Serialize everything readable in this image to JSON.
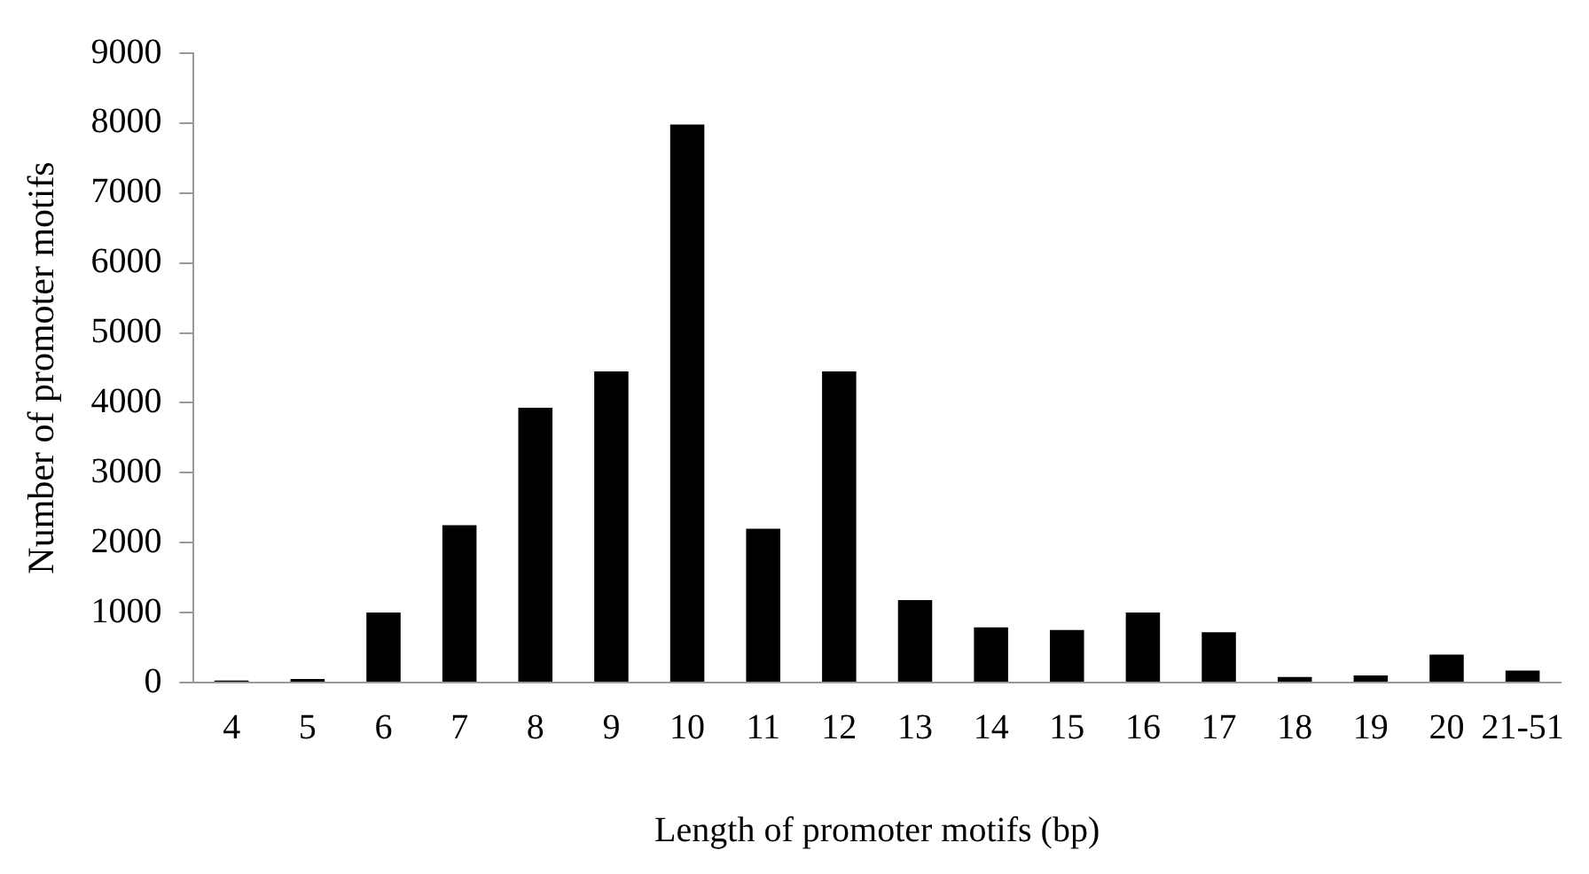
{
  "chart_data": {
    "type": "bar",
    "xlabel": "Length of promoter motifs (bp)",
    "ylabel": "Number of promoter motifs",
    "categories": [
      "4",
      "5",
      "6",
      "7",
      "8",
      "9",
      "10",
      "11",
      "12",
      "13",
      "14",
      "15",
      "16",
      "17",
      "18",
      "19",
      "20",
      "21-51"
    ],
    "values": [
      30,
      50,
      1000,
      2250,
      3930,
      4450,
      7980,
      2200,
      4450,
      1180,
      790,
      750,
      1000,
      720,
      80,
      100,
      400,
      170
    ],
    "color": "#000000",
    "ylim": [
      0,
      9000
    ],
    "yticks": [
      0,
      1000,
      2000,
      3000,
      4000,
      5000,
      6000,
      7000,
      8000,
      9000
    ],
    "grid": false,
    "legend": false
  }
}
